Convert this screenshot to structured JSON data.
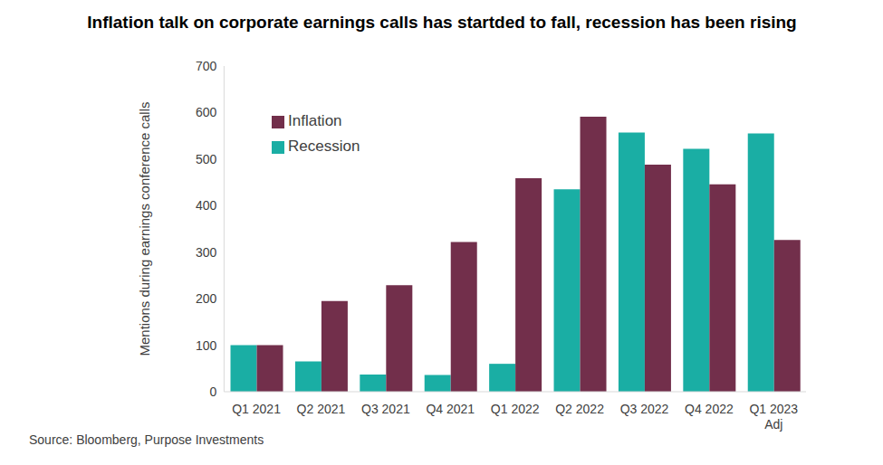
{
  "chart_data": {
    "type": "bar",
    "title": "Inflation talk on corporate earnings calls has startded to fall, recession has been rising",
    "y_label": "Mentions during earnings conference calls",
    "source": "Source: Bloomberg, Purpose Investments",
    "categories": [
      "Q1 2021",
      "Q2 2021",
      "Q3 2021",
      "Q4 2021",
      "Q1 2022",
      "Q2 2022",
      "Q3 2022",
      "Q4 2022",
      "Q1 2023 Adj"
    ],
    "series": [
      {
        "name": "Recession",
        "color": "#1aaea4",
        "values": [
          100,
          65,
          37,
          36,
          60,
          435,
          557,
          522,
          555
        ]
      },
      {
        "name": "Inflation",
        "color": "#722f4b",
        "values": [
          100,
          195,
          229,
          322,
          459,
          591,
          488,
          446,
          326
        ]
      }
    ],
    "ylim": [
      0,
      700
    ],
    "yticks": [
      0,
      100,
      200,
      300,
      400,
      500,
      600,
      700
    ],
    "grid": false,
    "legend": "top-left"
  }
}
